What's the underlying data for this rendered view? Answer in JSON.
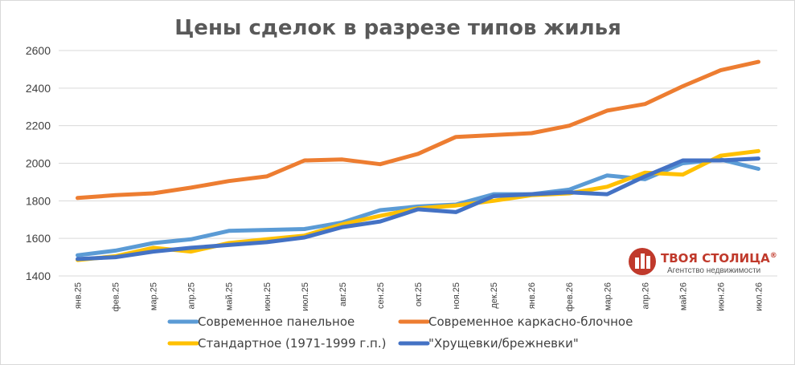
{
  "chart_data": {
    "type": "line",
    "title": "Цены сделок в разрезе типов жилья",
    "xlabel": "",
    "ylabel": "",
    "ylim": [
      1400,
      2600
    ],
    "yticks": [
      1400,
      1600,
      1800,
      2000,
      2200,
      2400,
      2600
    ],
    "grid": true,
    "legend": "bottom",
    "categories": [
      "янв.25",
      "фев.25",
      "мар.25",
      "апр.25",
      "май.25",
      "июн.25",
      "июл.25",
      "авг.25",
      "сен.25",
      "окт.25",
      "ноя.25",
      "дек.25",
      "янв.26",
      "фев.26",
      "мар.26",
      "апр.26",
      "май.26",
      "июн.26",
      "июл.26"
    ],
    "series": [
      {
        "name": "Современное панельное",
        "color": "#5b9bd5",
        "values": [
          1510,
          1535,
          1575,
          1595,
          1640,
          1645,
          1650,
          1685,
          1750,
          1770,
          1780,
          1835,
          1835,
          1860,
          1935,
          1915,
          2000,
          2020,
          1970
        ]
      },
      {
        "name": "Современное каркасно-блочное",
        "color": "#ed7d31",
        "values": [
          1815,
          1830,
          1840,
          1870,
          1905,
          1930,
          2015,
          2020,
          1995,
          2050,
          2140,
          2150,
          2160,
          2200,
          2280,
          2315,
          2410,
          2495,
          2540
        ]
      },
      {
        "name": "Стандартное (1971-1999 г.п.)",
        "color": "#ffc000",
        "values": [
          1485,
          1505,
          1550,
          1530,
          1575,
          1595,
          1615,
          1675,
          1720,
          1760,
          1775,
          1800,
          1830,
          1840,
          1875,
          1950,
          1940,
          2040,
          2065
        ]
      },
      {
        "name": "\"Хрущевки/брежневки\"",
        "color": "#4472c4",
        "values": [
          1490,
          1500,
          1530,
          1550,
          1565,
          1580,
          1605,
          1660,
          1690,
          1755,
          1740,
          1825,
          1835,
          1845,
          1835,
          1930,
          2015,
          2015,
          2025
        ]
      }
    ]
  },
  "logo": {
    "name": "ТВОЯ СТОЛИЦА",
    "registered": "®",
    "tagline": "Агентство недвижимости",
    "color": "#c0392b"
  }
}
